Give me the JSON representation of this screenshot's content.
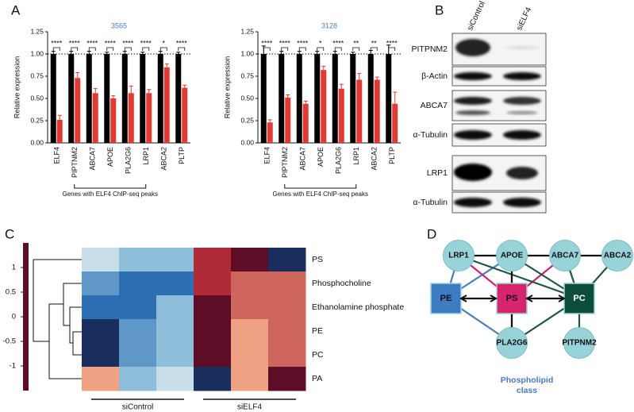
{
  "panels": [
    "A",
    "B",
    "C",
    "D"
  ],
  "chart_data": [
    {
      "type": "bar",
      "title": "3565",
      "ylabel": "Relative expression",
      "categories": [
        "ELF4",
        "PIPTNM2",
        "ABCA7",
        "APOE",
        "PLA2G6",
        "LRP1",
        "ABCA2",
        "PLTP"
      ],
      "series": [
        {
          "color": "#000000",
          "values": [
            1,
            1,
            1,
            1,
            1,
            1,
            1,
            1
          ],
          "errors": [
            0.03,
            0.03,
            0.03,
            0.02,
            0.03,
            0.02,
            0.03,
            0.02
          ]
        },
        {
          "color": "#e03a32",
          "values": [
            0.26,
            0.73,
            0.56,
            0.5,
            0.56,
            0.56,
            0.85,
            0.62
          ],
          "errors": [
            0.05,
            0.06,
            0.05,
            0.03,
            0.08,
            0.04,
            0.04,
            0.03
          ]
        }
      ],
      "annotations": [
        "****",
        "****",
        "****",
        "****",
        "****",
        "****",
        "*",
        "****"
      ],
      "hline": 1,
      "bracket": {
        "label": "Genes with ELF4 ChIP-seq peaks",
        "from": 1,
        "to": 5
      },
      "ylim": [
        0,
        1.25
      ],
      "yticks": [
        {
          "value": 0,
          "label": "0.00"
        },
        {
          "value": 0.25,
          "label": "0.25"
        },
        {
          "value": 0.5,
          "label": "0.50"
        },
        {
          "value": 0.75,
          "label": "0.75"
        },
        {
          "value": 1,
          "label": "1.00"
        },
        {
          "value": 1.25,
          "label": "1.25"
        }
      ]
    },
    {
      "type": "bar",
      "title": "3128",
      "ylabel": "Relative expression",
      "categories": [
        "ELF4",
        "PIPTNM2",
        "ABCA7",
        "APOE",
        "PLA2G6",
        "LRP1",
        "ABCA2",
        "PLTP"
      ],
      "series": [
        {
          "color": "#000000",
          "values": [
            1,
            1,
            1,
            1,
            1,
            1,
            1,
            1
          ],
          "errors": [
            0.09,
            0.03,
            0.03,
            0.03,
            0.03,
            0.02,
            0.04,
            0.1
          ]
        },
        {
          "color": "#e03a32",
          "values": [
            0.23,
            0.51,
            0.44,
            0.82,
            0.61,
            0.71,
            0.71,
            0.44
          ],
          "errors": [
            0.03,
            0.03,
            0.03,
            0.04,
            0.05,
            0.07,
            0.03,
            0.13
          ]
        }
      ],
      "annotations": [
        "****",
        "****",
        "****",
        "*",
        "****",
        "**",
        "**",
        "****"
      ],
      "hline": 1,
      "bracket": {
        "label": "Genes with ELF4 ChIP-seq peaks",
        "from": 1,
        "to": 5
      },
      "ylim": [
        0,
        1.25
      ],
      "yticks": [
        {
          "value": 0,
          "label": "0.00"
        },
        {
          "value": 0.25,
          "label": "0.25"
        },
        {
          "value": 0.5,
          "label": "0.50"
        },
        {
          "value": 0.75,
          "label": "0.75"
        },
        {
          "value": 1,
          "label": "1.00"
        },
        {
          "value": 1.25,
          "label": "1.25"
        }
      ]
    },
    {
      "type": "heatmap",
      "rows": [
        "PS",
        "Phosphocholine",
        "Ethanolamine phosphate",
        "PE",
        "PC",
        "PA"
      ],
      "z": [
        [
          0.3,
          0.7,
          0.7,
          -1,
          -1.5,
          1.5
        ],
        [
          0.9,
          1.1,
          1.1,
          -1,
          -0.75,
          -0.75
        ],
        [
          1.1,
          1.1,
          0.7,
          -1.5,
          -0.75,
          -0.75
        ],
        [
          1.5,
          0.9,
          0.7,
          -1.5,
          -0.5,
          -0.75
        ],
        [
          1.5,
          0.9,
          0.7,
          -1.5,
          -0.5,
          -0.75
        ],
        [
          -0.5,
          0.7,
          0.3,
          1.5,
          -0.5,
          -1.5
        ]
      ],
      "groups": [
        {
          "label": "siControl",
          "columns": [
            0,
            2
          ]
        },
        {
          "label": "siELF4",
          "columns": [
            3,
            5
          ]
        }
      ],
      "zlim": [
        -1.5,
        1.5
      ],
      "zticks": [
        1,
        0.5,
        0,
        -0.5,
        -1
      ],
      "colorscale": [
        [
          -1.5,
          "#5e0d26"
        ],
        [
          -1,
          "#b02a37"
        ],
        [
          -0.5,
          "#eea283"
        ],
        [
          0,
          "#f4efec"
        ],
        [
          0.3,
          "#c8dfea"
        ],
        [
          0.7,
          "#8fbedb"
        ],
        [
          1.1,
          "#2e6fb3"
        ],
        [
          1.5,
          "#1b2f5e"
        ]
      ]
    }
  ],
  "blot": {
    "lanes": [
      "siControl",
      "siELF4"
    ],
    "rows": [
      "PITPNM2",
      "β-Actin",
      "ABCA7",
      "α-Tubulin",
      "LRP1",
      "α-Tubulin"
    ]
  },
  "network": {
    "nodes": [
      "LRP1",
      "APOE",
      "ABCA7",
      "ABCA2",
      "PE",
      "PS",
      "PC",
      "PLA2G6",
      "PITPNM2"
    ],
    "caption": [
      "Phospholipid",
      "class"
    ]
  }
}
